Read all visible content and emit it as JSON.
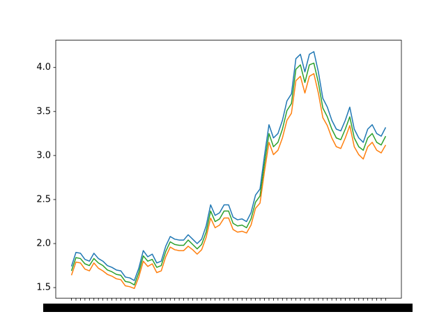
{
  "chart_data": {
    "type": "line",
    "categories": [
      null,
      null,
      null,
      null,
      null,
      null,
      null,
      null,
      null,
      null,
      null,
      null,
      null,
      null,
      null,
      null,
      null,
      null,
      null,
      null,
      null,
      null,
      null,
      null,
      null,
      null,
      null,
      null,
      null,
      null,
      null,
      null,
      null,
      null,
      null,
      null,
      null,
      null,
      null,
      null,
      null,
      null,
      null,
      null,
      null,
      null,
      null,
      null,
      null,
      null,
      null,
      null,
      null,
      null,
      null,
      null,
      null,
      null,
      null,
      null,
      null,
      null,
      null,
      null,
      null,
      null,
      null,
      null,
      null,
      null,
      null
    ],
    "series": [
      {
        "color": "#1f77b4",
        "values": [
          1.74,
          1.9,
          1.89,
          1.82,
          1.8,
          1.89,
          1.83,
          1.8,
          1.75,
          1.73,
          1.7,
          1.69,
          1.62,
          1.61,
          1.58,
          1.72,
          1.92,
          1.85,
          1.88,
          1.78,
          1.8,
          1.97,
          2.08,
          2.05,
          2.04,
          2.04,
          2.1,
          2.05,
          2.0,
          2.05,
          2.2,
          2.44,
          2.32,
          2.35,
          2.44,
          2.44,
          2.3,
          2.27,
          2.28,
          2.25,
          2.35,
          2.55,
          2.62,
          3.0,
          3.35,
          3.2,
          3.25,
          3.4,
          3.62,
          3.7,
          4.1,
          4.15,
          3.95,
          4.15,
          4.18,
          3.95,
          3.65,
          3.55,
          3.4,
          3.3,
          3.28,
          3.4,
          3.55,
          3.3,
          3.2,
          3.15,
          3.3,
          3.35,
          3.25,
          3.22,
          3.32
        ]
      },
      {
        "color": "#ff7f0e",
        "values": [
          1.64,
          1.79,
          1.78,
          1.71,
          1.69,
          1.78,
          1.72,
          1.69,
          1.65,
          1.63,
          1.6,
          1.59,
          1.52,
          1.51,
          1.49,
          1.62,
          1.8,
          1.74,
          1.77,
          1.67,
          1.69,
          1.85,
          1.96,
          1.93,
          1.92,
          1.92,
          1.97,
          1.93,
          1.88,
          1.93,
          2.07,
          2.29,
          2.18,
          2.21,
          2.29,
          2.29,
          2.16,
          2.13,
          2.14,
          2.12,
          2.21,
          2.4,
          2.46,
          2.82,
          3.15,
          3.01,
          3.06,
          3.2,
          3.4,
          3.48,
          3.85,
          3.9,
          3.71,
          3.9,
          3.93,
          3.71,
          3.43,
          3.34,
          3.2,
          3.1,
          3.08,
          3.2,
          3.34,
          3.1,
          3.01,
          2.96,
          3.1,
          3.15,
          3.06,
          3.03,
          3.12
        ]
      },
      {
        "color": "#2ca02c",
        "values": [
          1.69,
          1.84,
          1.83,
          1.77,
          1.75,
          1.83,
          1.78,
          1.75,
          1.7,
          1.68,
          1.65,
          1.64,
          1.57,
          1.56,
          1.53,
          1.67,
          1.86,
          1.8,
          1.82,
          1.73,
          1.75,
          1.91,
          2.02,
          1.99,
          1.98,
          1.98,
          2.04,
          1.99,
          1.94,
          1.99,
          2.13,
          2.37,
          2.25,
          2.28,
          2.37,
          2.37,
          2.23,
          2.2,
          2.21,
          2.18,
          2.28,
          2.47,
          2.54,
          2.91,
          3.25,
          3.1,
          3.15,
          3.3,
          3.51,
          3.59,
          3.98,
          4.03,
          3.83,
          4.03,
          4.05,
          3.83,
          3.54,
          3.44,
          3.3,
          3.2,
          3.18,
          3.3,
          3.44,
          3.2,
          3.1,
          3.06,
          3.2,
          3.25,
          3.15,
          3.12,
          3.22
        ]
      }
    ],
    "ylim": [
      1.38,
      4.31
    ],
    "yticks": [
      1.5,
      {
        "value": 2,
        "label": "2.0"
      },
      2.5,
      {
        "value": 3,
        "label": "3.0"
      },
      3.5,
      {
        "value": 4,
        "label": "4.0"
      }
    ]
  }
}
